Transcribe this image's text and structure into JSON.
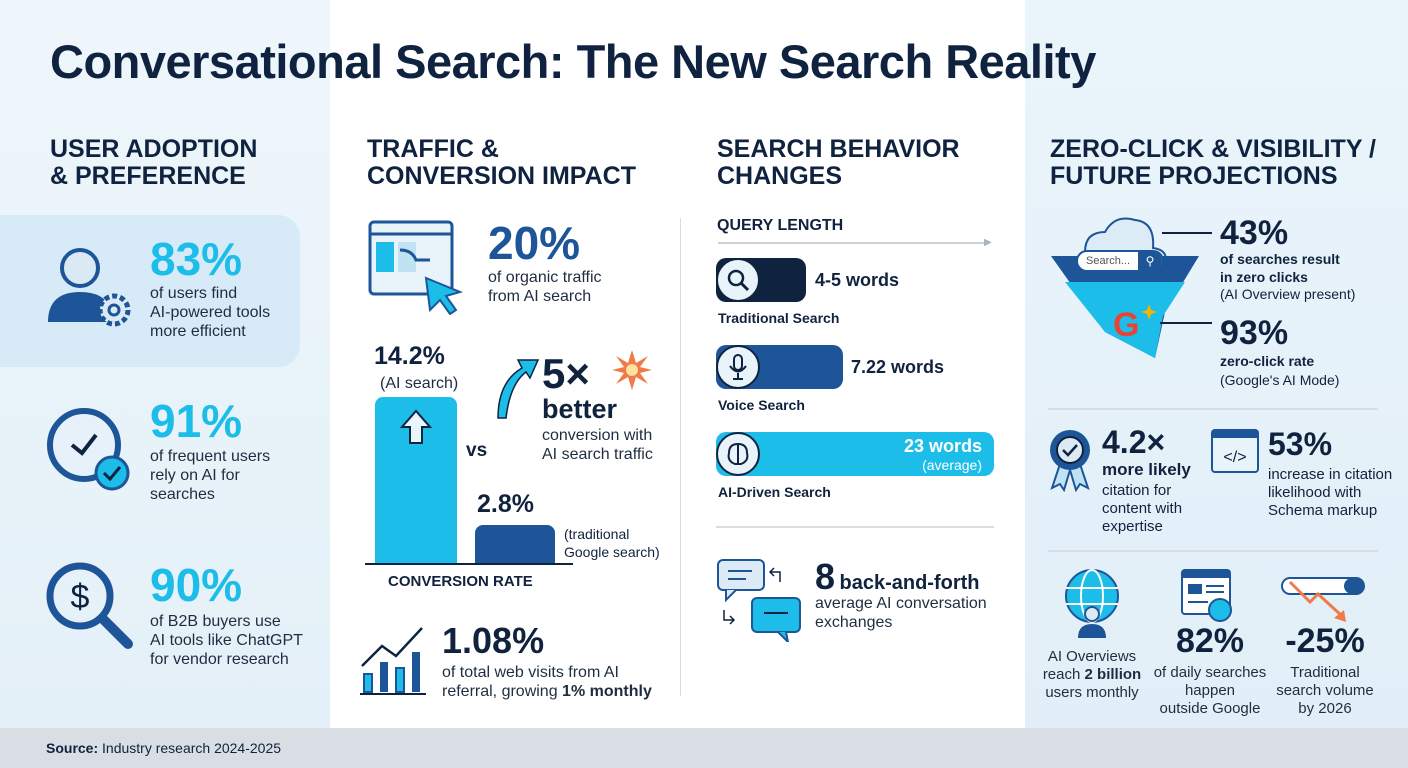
{
  "title": "Conversational Search: The New Search Reality",
  "colors": {
    "cyan": "#1cbde8",
    "navy": "#0f2340",
    "blue": "#1e5598",
    "orange": "#f07a4a"
  },
  "col1": {
    "heading": "USER ADOPTION\n& PREFERENCE",
    "stats": [
      {
        "value": "83%",
        "text": "of users find\nAI-powered tools\nmore efficient",
        "icon": "user-gear-icon"
      },
      {
        "value": "91%",
        "text": "of frequent users\nrely on AI for\nsearches",
        "icon": "clock-check-icon"
      },
      {
        "value": "90%",
        "text": "of B2B buyers use\nAI tools like ChatGPT\nfor vendor research",
        "icon": "dollar-search-icon"
      }
    ]
  },
  "col2": {
    "heading": "TRAFFIC &\nCONVERSION IMPACT",
    "traffic": {
      "value": "20%",
      "text": "of organic traffic\nfrom AI search"
    },
    "chart": {
      "ai_value": "14.2%",
      "ai_label": "(AI search)",
      "vs": "vs",
      "trad_value": "2.8%",
      "trad_label": "(traditional\nGoogle search)",
      "axis_label": "CONVERSION RATE",
      "ai": 14.2,
      "traditional": 2.8
    },
    "multiplier": {
      "value": "5×",
      "word": "better",
      "text": "conversion with\nAI search traffic"
    },
    "referral": {
      "value": "1.08%",
      "text": "of total web visits from AI\nreferral, growing ",
      "bold": "1% monthly"
    }
  },
  "col3": {
    "heading": "SEARCH BEHAVIOR\nCHANGES",
    "query_title": "QUERY LENGTH",
    "queries": [
      {
        "label": "Traditional Search",
        "value": "4-5 words",
        "words": 4.5,
        "icon": "search-icon"
      },
      {
        "label": "Voice Search",
        "value": "7.22 words",
        "words": 7.22,
        "icon": "microphone-icon"
      },
      {
        "label": "AI-Driven Search",
        "value": "23 words",
        "sub": "(average)",
        "words": 23,
        "icon": "brain-icon"
      }
    ],
    "conversation": {
      "value": "8",
      "bold": "back-and-forth",
      "text": "average AI conversation\nexchanges"
    }
  },
  "col4": {
    "heading": "ZERO-CLICK & VISIBILITY /\nFUTURE PROJECTIONS",
    "search_placeholder": "Search...",
    "zero": {
      "value": "43%",
      "bold": "of searches result\nin zero clicks",
      "text": "(AI Overview present)"
    },
    "mode": {
      "value": "93%",
      "bold": "zero-click rate",
      "text": "(Google's AI Mode)"
    },
    "expertise": {
      "value": "4.2×",
      "bold": "more likely",
      "text": "citation for\ncontent with\nexpertise"
    },
    "schema": {
      "value": "53%",
      "text": "increase in citation\nlikelihood with\nSchema markup"
    },
    "overviews": {
      "pre": "AI Overviews\nreach ",
      "bold": "2 billion",
      "post": "\nusers monthly"
    },
    "outside": {
      "value": "82%",
      "text": "of daily searches\nhappen\noutside Google"
    },
    "decline": {
      "value": "-25%",
      "text": "Traditional\nsearch volume\nby 2026"
    }
  },
  "footer": {
    "label": "Source:",
    "text": " Industry research 2024-2025"
  }
}
